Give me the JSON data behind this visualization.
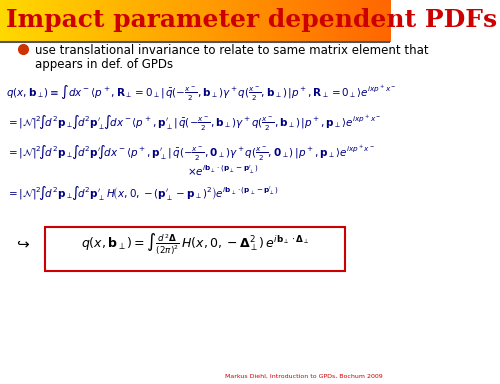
{
  "title": "Impact parameter dependent PDFs",
  "title_color": "#cc0000",
  "bg_color": "#ffffff",
  "header_bg_gradient_left": "#ffcc00",
  "header_bg_gradient_right": "#ff8800",
  "bullet_text": "use translational invariance to relate to same matrix element that\nappears in def. of GPDs",
  "eq1": "q(x,\\mathbf{b}_{\\perp}) \\equiv \\int dx^- \\langle p^+, \\mathbf{R}_{\\perp} = 0_\\perp | \\bar{q}(-\\frac{x^-}{2}, \\mathbf{b}_{\\perp})\\gamma^+ q(\\frac{x^-}{2}, \\mathbf{b}_{\\perp}) | p^+, \\mathbf{R}_{\\perp} = 0_\\perp \\rangle e^{ixp^+x^-}",
  "eq2": "= |\\mathcal{N}|^2 \\int d^2\\mathbf{p}_\\perp \\int d^2\\mathbf{p}'_\\perp \\int dx^- \\langle p^+, \\mathbf{p}'_\\perp | \\bar{q}(-\\frac{x^-}{2}, \\mathbf{b}_{\\perp})\\gamma^+ q(\\frac{x^-}{2}, \\mathbf{b}_{\\perp}) | p^+, \\mathbf{p}_\\perp \\rangle e^{ixp^+x^-}",
  "eq3": "= |\\mathcal{N}|^2 \\int d^2\\mathbf{p}_\\perp \\int d^2\\mathbf{p}' \\int dx^- \\langle p^+, \\mathbf{p}'_\\perp | \\bar{q}(-\\frac{x^-}{2}, \\mathbf{0}_\\perp)\\gamma^+ q(\\frac{x^-}{2}, \\mathbf{0}_\\perp) | p^+, \\mathbf{p}_\\perp \\rangle e^{ixp^+x^-}",
  "eq3b": "\\times e^{i\\mathbf{b}_\\perp \\cdot (\\mathbf{p}_\\perp - \\mathbf{p}'_\\perp)}",
  "eq4": "= |\\mathcal{N}|^2 \\int d^2\\mathbf{p}_\\perp \\int d^2\\mathbf{p}'_\\perp\\, H\\!\\left(x, 0, -(\\mathbf{p}'_1 - \\mathbf{p}_\\perp)^2\\right) e^{i\\mathbf{b}_\\perp \\cdot (\\mathbf{p}_\\perp - \\mathbf{p}'_\\perp)}",
  "eq_final": "q(x, \\mathbf{b}_\\perp) = \\int \\frac{d^2\\mathbf{\\Delta}}{(2\\pi)^2} H(x, 0, -\\mathbf{\\Delta}^2_\\perp) e^{i\\mathbf{b}_\\perp \\cdot \\mathbf{\\Delta}_\\perp}",
  "footer_text": "Markus Diehl, Introduction to GPDs, Bochum 2009",
  "eq_color": "#000080",
  "final_eq_color": "#000000",
  "box_color": "#cc0000"
}
